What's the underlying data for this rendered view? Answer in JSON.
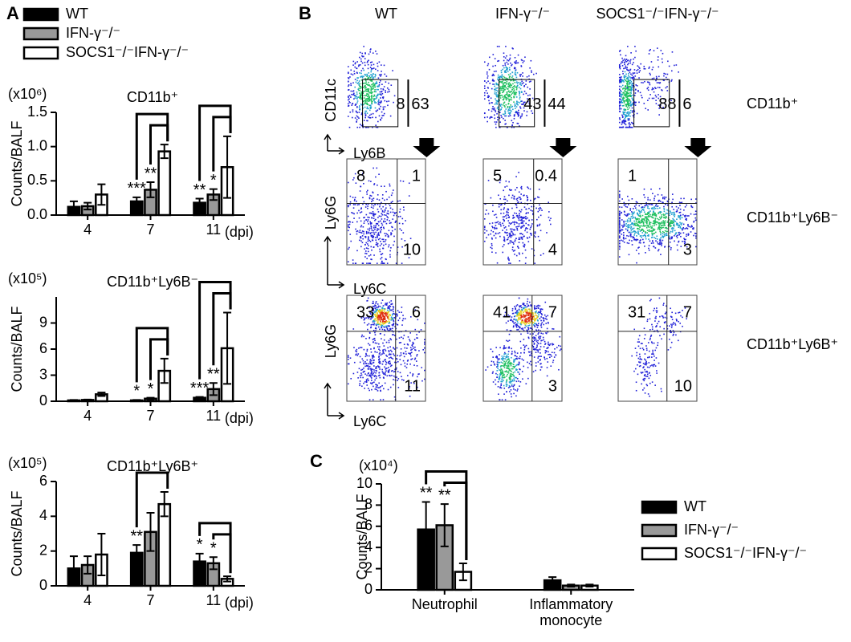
{
  "panel_labels": [
    "A",
    "B",
    "C"
  ],
  "chart_data": [
    {
      "type": "bar",
      "title": "CD11b⁺",
      "unit": "(x10⁶)",
      "y_label": "Counts/BALF",
      "x_label": "(dpi)",
      "categories": [
        "4",
        "7",
        "11"
      ],
      "ylim": [
        0,
        1.5
      ],
      "yticks": [
        {
          "value": 0,
          "label": "0.0"
        },
        0.5,
        {
          "value": 1,
          "label": "1.0"
        },
        1.5
      ],
      "legend": "top",
      "series": [
        {
          "name": "WT",
          "color": "#000000",
          "values": [
            0.12,
            0.2,
            0.18
          ],
          "errors": [
            0.08,
            0.06,
            0.06
          ],
          "significance": [
            null,
            "***",
            "**"
          ]
        },
        {
          "name": "IFN-γ⁻/⁻",
          "color": "#999999",
          "values": [
            0.13,
            0.37,
            0.3
          ],
          "errors": [
            0.05,
            0.11,
            0.08
          ],
          "significance": [
            null,
            "**",
            "*"
          ]
        },
        {
          "name": "SOCS1⁻/⁻IFN-γ⁻/⁻",
          "color": "#ffffff",
          "values": [
            0.3,
            0.93,
            0.7
          ],
          "errors": [
            0.15,
            0.1,
            0.45
          ],
          "significance": [
            null,
            null,
            null
          ]
        }
      ]
    },
    {
      "type": "bar",
      "title": "CD11b⁺Ly6B⁻",
      "unit": "(x10⁵)",
      "y_label": "Counts/BALF",
      "x_label": "(dpi)",
      "categories": [
        "4",
        "7",
        "11"
      ],
      "ylim": [
        0,
        12
      ],
      "yticks": [
        0,
        3,
        6,
        9
      ],
      "series": [
        {
          "name": "WT",
          "color": "#000000",
          "values": [
            0.1,
            0.1,
            0.4
          ],
          "errors": [
            0.05,
            0.05,
            0.1
          ],
          "significance": [
            null,
            "*",
            "***"
          ]
        },
        {
          "name": "IFN-γ⁻/⁻",
          "color": "#999999",
          "values": [
            0.15,
            0.3,
            1.4
          ],
          "errors": [
            0.05,
            0.1,
            0.7
          ],
          "significance": [
            null,
            "*",
            "**"
          ]
        },
        {
          "name": "SOCS1⁻/⁻IFN-γ⁻/⁻",
          "color": "#ffffff",
          "values": [
            0.8,
            3.5,
            6.1
          ],
          "errors": [
            0.2,
            1.4,
            4.1
          ],
          "significance": [
            null,
            null,
            null
          ]
        }
      ]
    },
    {
      "type": "bar",
      "title": "CD11b⁺Ly6B⁺",
      "unit": "(x10⁵)",
      "y_label": "Counts/BALF",
      "x_label": "(dpi)",
      "categories": [
        "4",
        "7",
        "11"
      ],
      "ylim": [
        0,
        6
      ],
      "yticks": [
        0,
        2,
        4,
        6
      ],
      "series": [
        {
          "name": "WT",
          "color": "#000000",
          "values": [
            1.0,
            1.9,
            1.4
          ],
          "errors": [
            0.7,
            0.45,
            0.45
          ],
          "significance": [
            null,
            "**",
            "*"
          ]
        },
        {
          "name": "IFN-γ⁻/⁻",
          "color": "#999999",
          "values": [
            1.2,
            3.1,
            1.3
          ],
          "errors": [
            0.5,
            1.1,
            0.35
          ],
          "significance": [
            null,
            null,
            "*"
          ]
        },
        {
          "name": "SOCS1⁻/⁻IFN-γ⁻/⁻",
          "color": "#ffffff",
          "values": [
            1.8,
            4.7,
            0.4
          ],
          "errors": [
            1.2,
            0.7,
            0.15
          ],
          "significance": [
            null,
            null,
            null
          ]
        }
      ]
    },
    {
      "type": "bar",
      "unit": "(x10⁴)",
      "y_label": "Counts/BALF",
      "categories": [
        "Neutrophil",
        "Inflammatory monocyte"
      ],
      "ylim": [
        0,
        10
      ],
      "yticks": [
        0,
        2,
        4,
        6,
        8,
        10
      ],
      "legend": "right",
      "series": [
        {
          "name": "WT",
          "color": "#000000",
          "values": [
            5.7,
            0.9
          ],
          "errors": [
            2.6,
            0.3
          ],
          "significance": [
            "**",
            null
          ]
        },
        {
          "name": "IFN-γ⁻/⁻",
          "color": "#999999",
          "values": [
            6.1,
            0.4
          ],
          "errors": [
            2.0,
            0.1
          ],
          "significance": [
            "**",
            null
          ]
        },
        {
          "name": "SOCS1⁻/⁻IFN-γ⁻/⁻",
          "color": "#ffffff",
          "values": [
            1.7,
            0.4
          ],
          "errors": [
            0.8,
            0.1
          ],
          "significance": [
            null,
            null
          ]
        }
      ]
    }
  ],
  "flow": {
    "columns": [
      "WT",
      "IFN-γ⁻/⁻",
      "SOCS1⁻/⁻IFN-γ⁻/⁻"
    ],
    "rows": [
      {
        "label": "CD11b⁺",
        "y_axis": "CD11c",
        "x_axis": "Ly6B",
        "plots": [
          {
            "left": 8,
            "right": 63
          },
          {
            "left": 43,
            "right": 44
          },
          {
            "left": 88,
            "right": 6
          }
        ]
      },
      {
        "label": "CD11b⁺Ly6B⁻",
        "y_axis": "Ly6G",
        "x_axis": "Ly6C",
        "plots": [
          {
            "tl": 8,
            "tr": 1,
            "br": 10
          },
          {
            "tl": 5,
            "tr": 0.4,
            "br": 4
          },
          {
            "tl": 1,
            "br": 3
          }
        ]
      },
      {
        "label": "CD11b⁺Ly6B⁺",
        "y_axis": "Ly6G",
        "x_axis": "Ly6C",
        "plots": [
          {
            "tl": 33,
            "tr": 6,
            "br": 11
          },
          {
            "tl": 41,
            "tr": 7,
            "br": 3
          },
          {
            "tl": 31,
            "tr": 7,
            "br": 10
          }
        ]
      }
    ]
  }
}
